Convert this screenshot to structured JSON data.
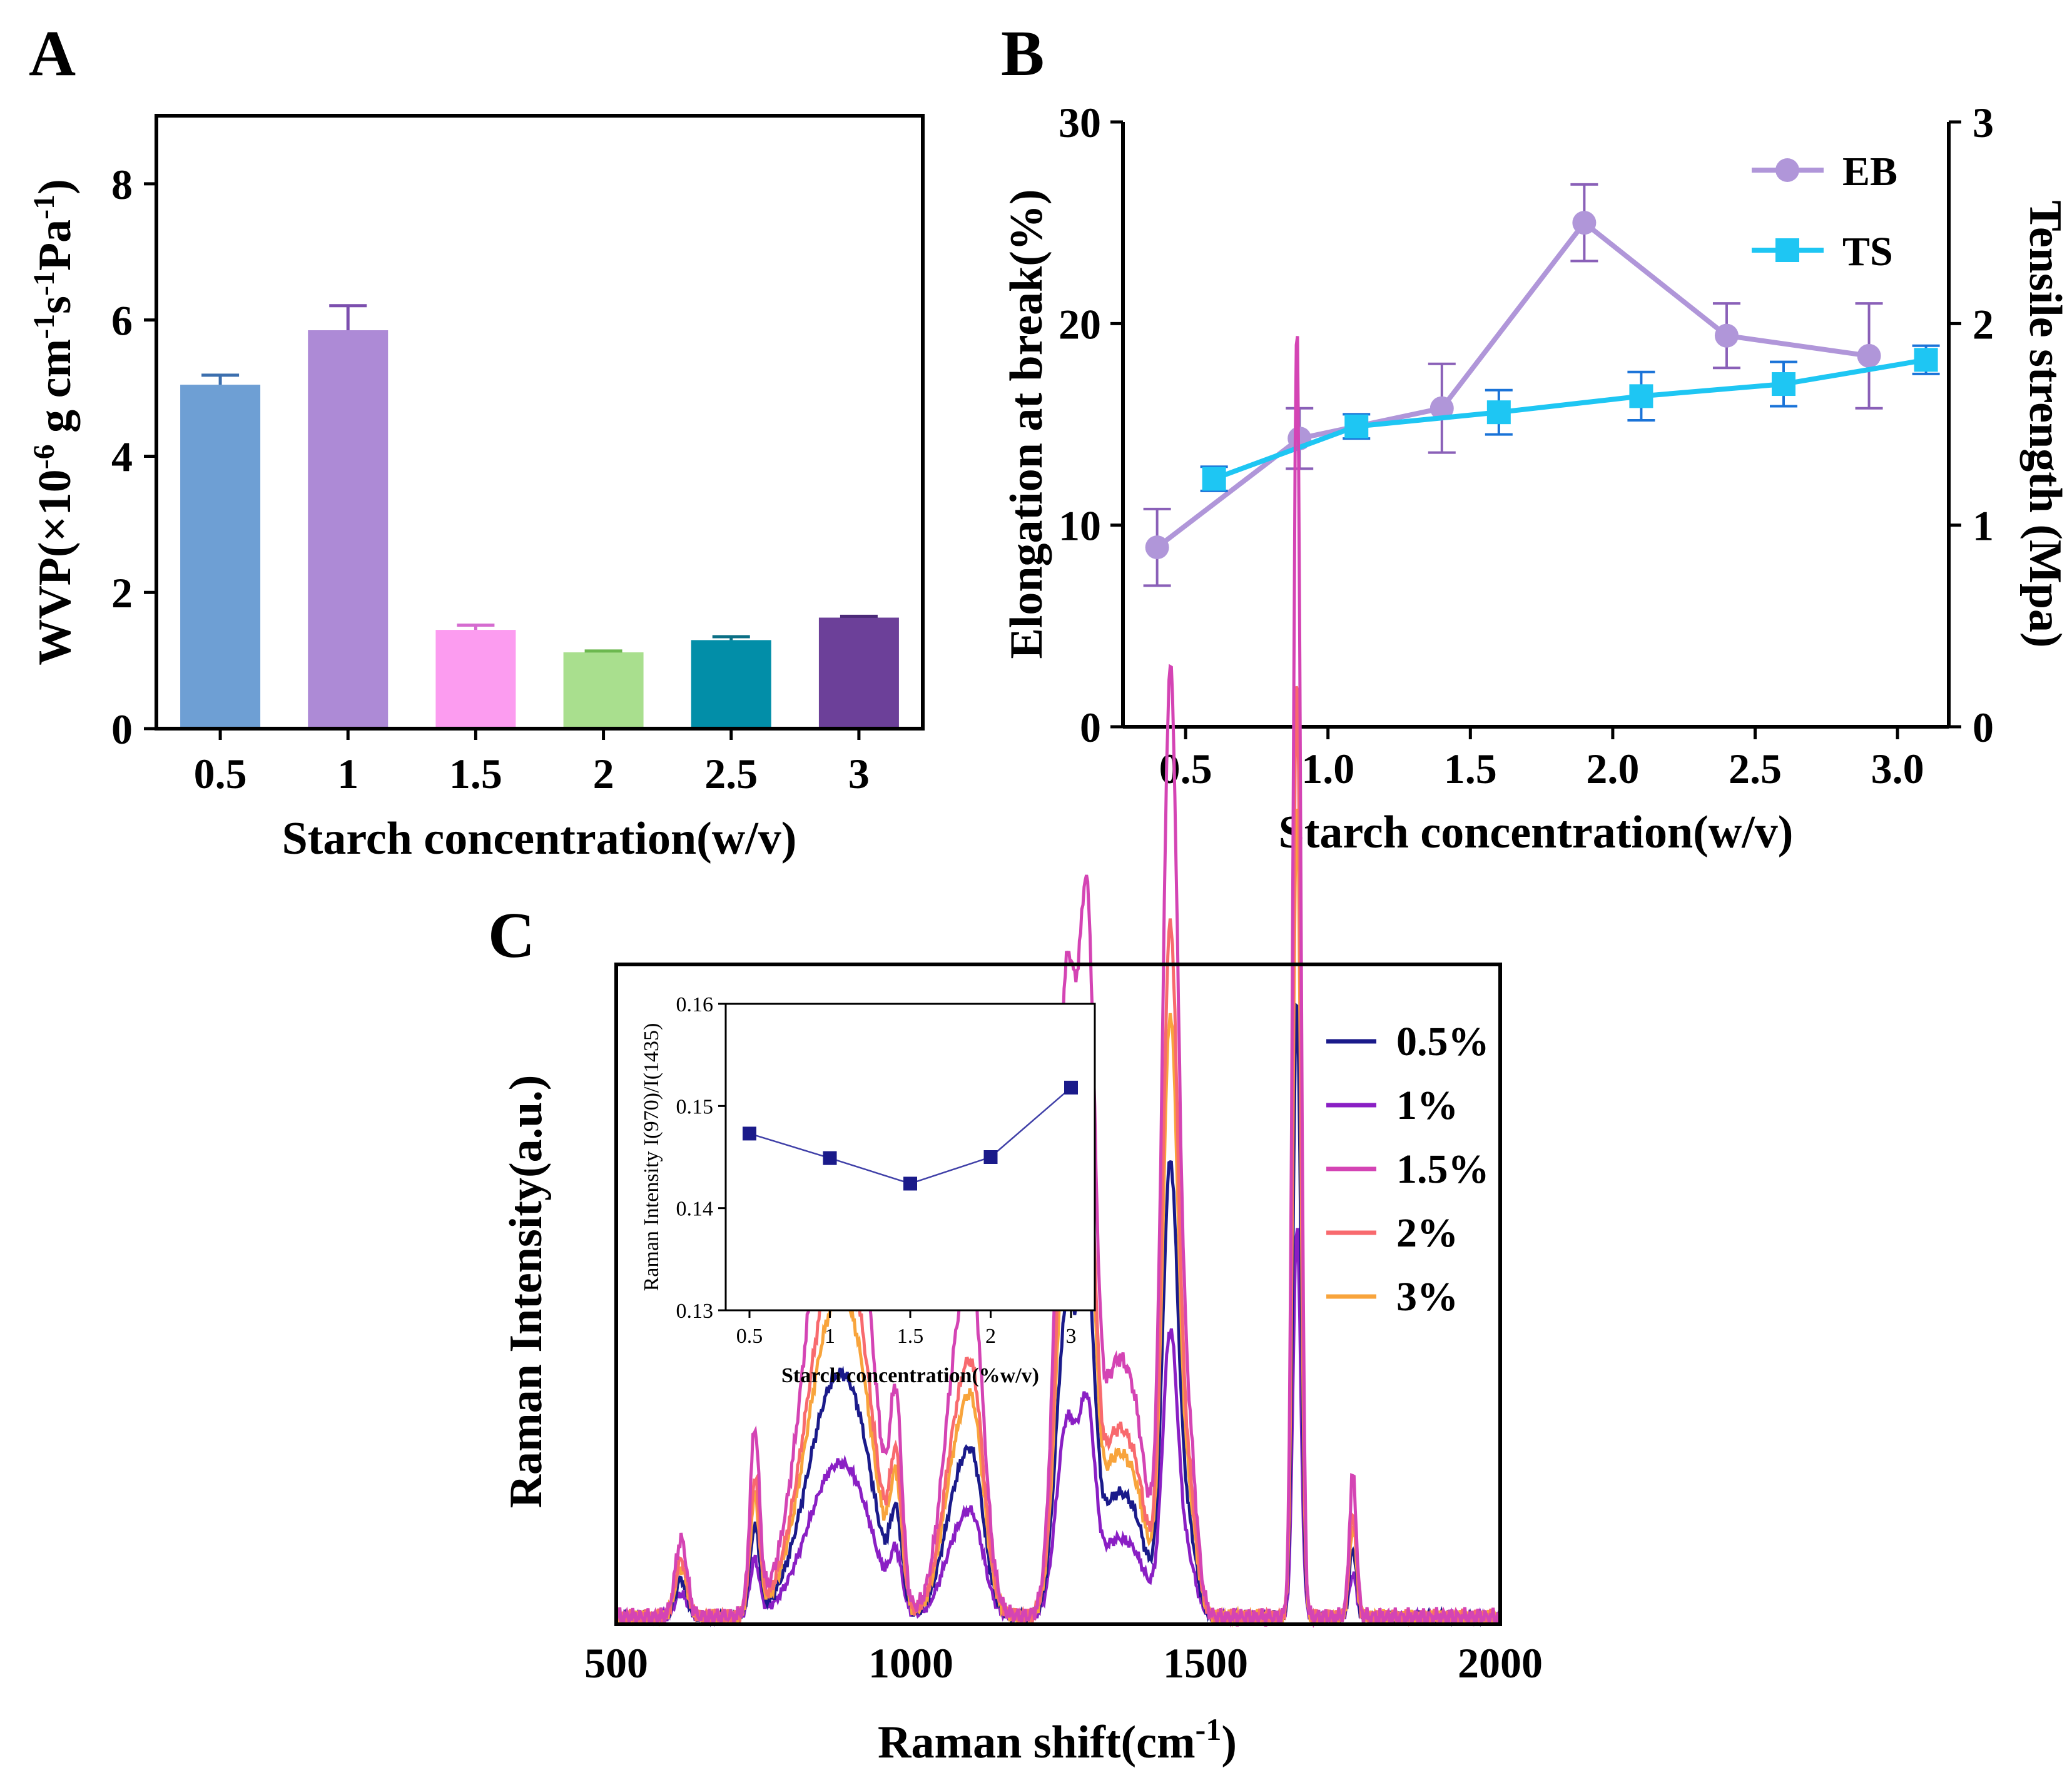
{
  "panels": {
    "a": "A",
    "b": "B",
    "c": "C"
  },
  "chart_data": [
    {
      "id": "A",
      "type": "bar",
      "categories": [
        "0.5",
        "1",
        "1.5",
        "2",
        "2.5",
        "3"
      ],
      "values": [
        5.05,
        5.85,
        1.45,
        1.12,
        1.3,
        1.63
      ],
      "errors": [
        0.14,
        0.36,
        0.07,
        0.02,
        0.05,
        0.02
      ],
      "colors": [
        "#6e9fd4",
        "#ad8ad6",
        "#fc9cf0",
        "#a9df8e",
        "#028ea8",
        "#6c4099"
      ],
      "error_colors": [
        "#3c6fae",
        "#7c4fae",
        "#d56cd0",
        "#6cb84f",
        "#0b6f85",
        "#4c2a78"
      ],
      "xlabel": "Starch concentration(w/v)",
      "ylabel": {
        "main": "WVP(×10",
        "e1": "-6",
        "m2": " g cm",
        "e2": "-1",
        "m3": "s",
        "e3": "-1",
        "m4": "Pa",
        "e4": "-1",
        "end": ")"
      },
      "ylim": [
        0,
        9
      ],
      "yticks": [
        0,
        2,
        4,
        6,
        8
      ],
      "ytick_labels": [
        "0",
        "2",
        "4",
        "6",
        "8"
      ]
    },
    {
      "id": "B",
      "type": "line",
      "xlabel": "Starch concentration(w/v)",
      "xlim": [
        0.28,
        3.18
      ],
      "xticks": [
        0.5,
        1.0,
        1.5,
        2.0,
        2.5,
        3.0
      ],
      "xtick_labels": [
        "0.5",
        "1.0",
        "1.5",
        "2.0",
        "2.5",
        "3.0"
      ],
      "ylabel_left": "Elongation at break(%)",
      "ylim_left": [
        0,
        30
      ],
      "yticks_left": [
        0,
        10,
        20,
        30
      ],
      "ytick_labels_left": [
        "0",
        "10",
        "20",
        "30"
      ],
      "ylabel_right": "Tensile strength (Mpa)",
      "ylim_right": [
        0,
        3
      ],
      "yticks_right": [
        0,
        1,
        2,
        3
      ],
      "ytick_labels_right": [
        "0",
        "1",
        "2",
        "3"
      ],
      "series": [
        {
          "name": "EB",
          "axis": "left",
          "color": "#b096d9",
          "marker": "circle",
          "x": [
            0.4,
            0.9,
            1.4,
            1.9,
            2.4,
            2.9
          ],
          "y": [
            8.9,
            14.3,
            15.8,
            25.0,
            19.4,
            18.4
          ],
          "err": [
            1.9,
            1.5,
            2.2,
            1.9,
            1.6,
            2.6
          ]
        },
        {
          "name": "TS",
          "axis": "right",
          "color": "#1ec6f3",
          "marker": "square",
          "x": [
            0.6,
            1.1,
            1.6,
            2.1,
            2.6,
            3.1
          ],
          "y": [
            1.23,
            1.49,
            1.56,
            1.64,
            1.7,
            1.82
          ],
          "err": [
            0.06,
            0.06,
            0.11,
            0.12,
            0.11,
            0.07
          ]
        }
      ],
      "legend": [
        "EB",
        "TS"
      ],
      "legend_position": "top-right"
    },
    {
      "id": "C",
      "type": "line",
      "xlabel": {
        "main": "Raman shift(cm",
        "sup": "-1",
        "end": ")"
      },
      "ylabel": "Raman Intensity(a.u.)",
      "xlim": [
        500,
        2000
      ],
      "xticks": [
        500,
        1000,
        1500,
        2000
      ],
      "xtick_labels": [
        "500",
        "1000",
        "1500",
        "2000"
      ],
      "peaks": [
        [
          610,
          6,
          10
        ],
        [
          735,
          14,
          8
        ],
        [
          850,
          18,
          45
        ],
        [
          880,
          20,
          40
        ],
        [
          920,
          12,
          30
        ],
        [
          975,
          14,
          10
        ],
        [
          1085,
          22,
          28
        ],
        [
          1110,
          10,
          16
        ],
        [
          1265,
          50,
          18
        ],
        [
          1300,
          46,
          13
        ],
        [
          1340,
          16,
          22
        ],
        [
          1380,
          14,
          22
        ],
        [
          1440,
          72,
          13
        ],
        [
          1470,
          14,
          14
        ],
        [
          1655,
          100,
          6.5
        ],
        [
          1750,
          11,
          6
        ]
      ],
      "series": [
        {
          "name": "0.5%",
          "color": "#1a1a8a",
          "scale": 1.0
        },
        {
          "name": "1%",
          "color": "#8a1fc4",
          "scale": 0.63
        },
        {
          "name": "1.5%",
          "color": "#d444b4",
          "scale": 2.08
        },
        {
          "name": "2%",
          "color": "#f86a6e",
          "scale": 1.52
        },
        {
          "name": "3%",
          "color": "#f8a43c",
          "scale": 1.32
        }
      ],
      "legend_position": "top-right",
      "inset": {
        "type": "line",
        "x": [
          0.5,
          1,
          1.5,
          2,
          3
        ],
        "x_positions": [
          0,
          1,
          2,
          3,
          4
        ],
        "y": [
          0.1473,
          0.1449,
          0.1424,
          0.145,
          0.1518
        ],
        "xtick_labels": [
          "0.5",
          "1",
          "1.5",
          "2",
          "3"
        ],
        "ylim": [
          0.13,
          0.16
        ],
        "yticks": [
          0.13,
          0.14,
          0.15,
          0.16
        ],
        "ytick_labels": [
          "0.13",
          "0.14",
          "0.15",
          "0.16"
        ],
        "xlabel": "Starch concentration(%w/v)",
        "ylabel": "Raman Intensity I(970)/I(1435)",
        "color": "#1a1a8a"
      }
    }
  ]
}
